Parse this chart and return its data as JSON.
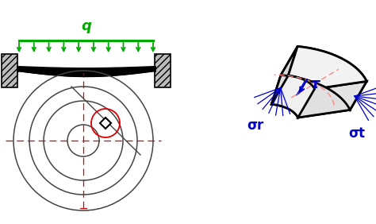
{
  "bg_color": "#ffffff",
  "green_color": "#00aa00",
  "red_color": "#dd0000",
  "blue_color": "#0000cc",
  "pink_color": "#ff8888",
  "black_color": "#000000",
  "gray_color": "#444444",
  "q_label": "q",
  "sigma_r_label": "σr",
  "sigma_t_label": "σt",
  "tau_label": "τ",
  "fig_w": 4.74,
  "fig_h": 2.82,
  "dpi": 100
}
